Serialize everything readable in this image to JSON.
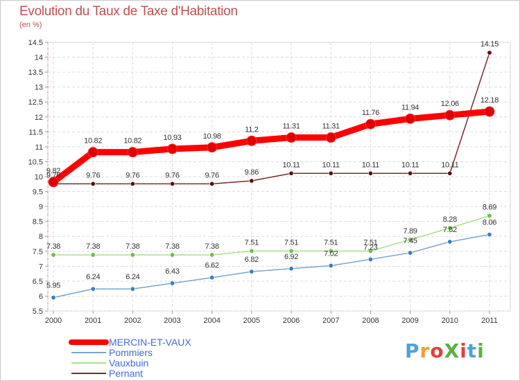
{
  "header": {
    "title": "Evolution du Taux de Taxe d'Habitation",
    "subtitle": "(en %)"
  },
  "logo": {
    "text": "ProXiti",
    "letter_colors": [
      "#4aa3d8",
      "#f0a030",
      "#e0403a",
      "#5ab040",
      "#e0403a",
      "#4aa3d8",
      "#5ab040"
    ]
  },
  "chart_data": {
    "type": "line",
    "title": "Evolution du Taux de Taxe d'Habitation",
    "ylabel": "(en %)",
    "xlabel": "",
    "ylim": [
      5.5,
      14.5
    ],
    "yticks": [
      "5.5",
      "6",
      "6.5",
      "7",
      "7.5",
      "8",
      "8.5",
      "9",
      "9.5",
      "10",
      "10.5",
      "11",
      "11.5",
      "12",
      "12.5",
      "13",
      "13.5",
      "14",
      "14.5"
    ],
    "categories": [
      "2000",
      "2001",
      "2002",
      "2003",
      "2004",
      "2005",
      "2006",
      "2007",
      "2008",
      "2009",
      "2010",
      "2011"
    ],
    "grid": "horizontal dashed",
    "legend_position": "bottom-left",
    "series": [
      {
        "name": "MERCIN-ET-VAUX",
        "color": "#ff0000",
        "marker": "#e00000",
        "values": [
          9.82,
          10.82,
          10.82,
          10.93,
          10.98,
          11.2,
          11.31,
          11.31,
          11.76,
          11.94,
          12.06,
          12.18
        ],
        "labels": [
          "9.82",
          "10.82",
          "10.82",
          "10.93",
          "10.98",
          "11.2",
          "11.31",
          "11.31",
          "11.76",
          "11.94",
          "12.06",
          "12.18"
        ]
      },
      {
        "name": "Pommiers",
        "color": "#7aa5cc",
        "marker": "#3a7cc0",
        "values": [
          5.95,
          6.24,
          6.24,
          6.43,
          6.62,
          6.82,
          6.92,
          7.02,
          7.23,
          7.45,
          7.82,
          8.06
        ],
        "labels": [
          "5.95",
          "6.24",
          "6.24",
          "6.43",
          "6.62",
          "6.82",
          "6.92",
          "7.02",
          "7.23",
          "7.45",
          "7.82",
          "8.06"
        ]
      },
      {
        "name": "Vauxbuin",
        "color": "#a8e08a",
        "marker": "#6cc040",
        "values": [
          7.38,
          7.38,
          7.38,
          7.38,
          7.38,
          7.51,
          7.51,
          7.51,
          7.51,
          7.89,
          8.28,
          8.69
        ],
        "labels": [
          "7.38",
          "7.38",
          "7.38",
          "7.38",
          "7.38",
          "7.51",
          "7.51",
          "7.51",
          "7.51",
          "7.89",
          "8.28",
          "8.69"
        ]
      },
      {
        "name": "Pernant",
        "color": "#7a2a2a",
        "marker": "#5a1010",
        "values": [
          9.76,
          9.76,
          9.76,
          9.76,
          9.76,
          9.86,
          10.11,
          10.11,
          10.11,
          10.11,
          10.11,
          14.15
        ],
        "labels": [
          "9.76",
          "9.76",
          "9.76",
          "9.76",
          "9.76",
          "9.86",
          "10.11",
          "10.11",
          "10.11",
          "10.11",
          "10.11",
          "14.15"
        ]
      }
    ]
  }
}
